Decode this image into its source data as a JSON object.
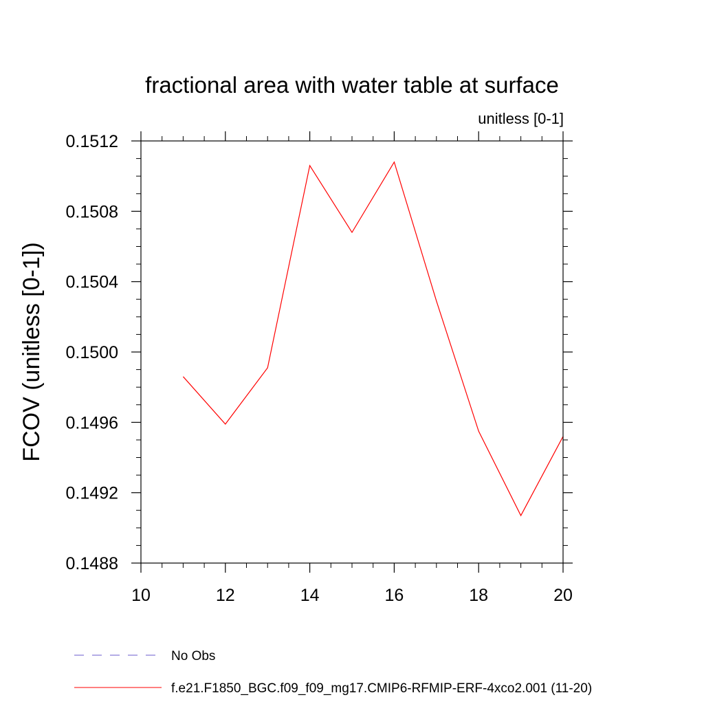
{
  "chart_data": {
    "type": "line",
    "title": "fractional area with water table at surface",
    "subtitle": "unitless [0-1]",
    "xlabel": "",
    "ylabel": "FCOV  (unitless [0-1])",
    "xlim": [
      10,
      20
    ],
    "ylim": [
      0.1488,
      0.1512
    ],
    "x_ticks": [
      10,
      12,
      14,
      16,
      18,
      20
    ],
    "x_tick_labels": [
      "10",
      "12",
      "14",
      "16",
      "18",
      "20"
    ],
    "y_ticks": [
      0.1488,
      0.1492,
      0.1496,
      0.15,
      0.1504,
      0.1508,
      0.1512
    ],
    "y_tick_labels": [
      "0.1488",
      "0.1492",
      "0.1496",
      "0.1500",
      "0.1504",
      "0.1508",
      "0.1512"
    ],
    "grid": false,
    "legend_position": "bottom",
    "series": [
      {
        "name": "f.e21.F1850_BGC.f09_f09_mg17.CMIP6-RFMIP-ERF-4xco2.001 (11-20)",
        "color": "#ff0000",
        "style": "solid",
        "x": [
          11,
          12,
          13,
          14,
          15,
          16,
          17,
          18,
          19,
          20
        ],
        "values": [
          0.14986,
          0.14959,
          0.14991,
          0.15106,
          0.15068,
          0.15108,
          0.15029,
          0.14955,
          0.14907,
          0.14952
        ]
      }
    ],
    "legend": [
      {
        "label": "No Obs",
        "color": "#6a5acd",
        "style": "dashed"
      },
      {
        "label": "f.e21.F1850_BGC.f09_f09_mg17.CMIP6-RFMIP-ERF-4xco2.001 (11-20)",
        "color": "#ff0000",
        "style": "solid"
      }
    ]
  }
}
